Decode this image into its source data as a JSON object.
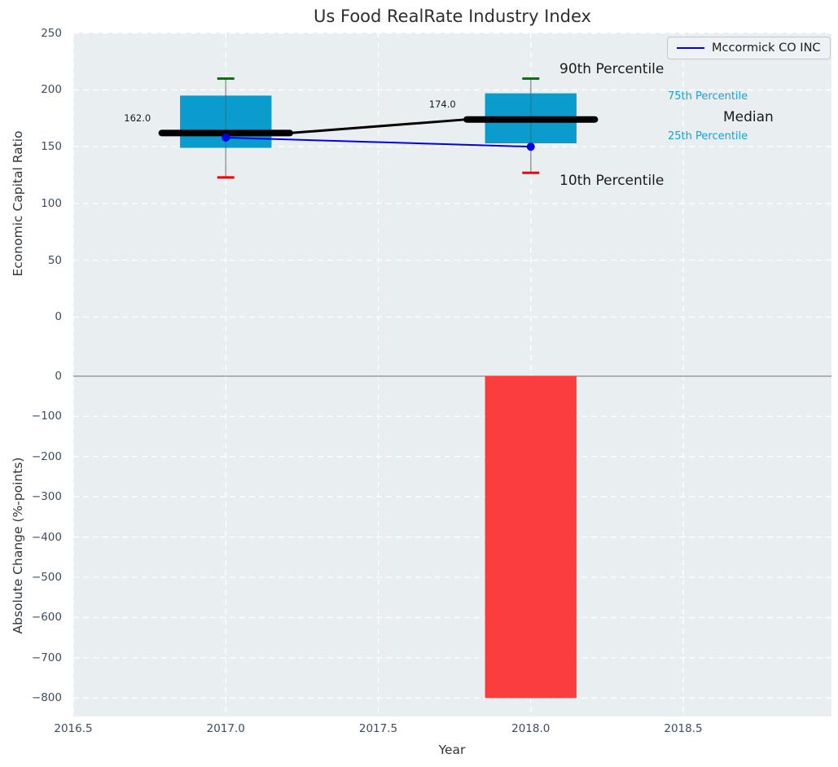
{
  "chart_data": {
    "type": "boxplot+bar",
    "title": "Us Food RealRate Industry Index",
    "xlabel": "Year",
    "x": {
      "xlim": [
        2016.5,
        2018.986
      ],
      "tick_values": [
        2016.5,
        2017.0,
        2017.5,
        2018.0,
        2018.5
      ],
      "tick_labels": [
        "2016.5",
        "2017.0",
        "2017.5",
        "2018.0",
        "2018.5"
      ]
    },
    "top": {
      "ylabel": "Economic Capital Ratio",
      "ylim": [
        -48.5,
        250.5
      ],
      "tick_values": [
        0,
        50,
        100,
        150,
        200,
        250
      ],
      "tick_labels": [
        "0",
        "50",
        "100",
        "150",
        "200",
        "250"
      ],
      "series_label": "Mccormick CO INC",
      "percentile_labels": {
        "p90": "90th Percentile",
        "p75": "75th Percentile",
        "median": "Median",
        "p25": "25th Percentile",
        "p10": "10th Percentile"
      },
      "boxes": [
        {
          "year": 2017,
          "p10": 123,
          "p25": 149,
          "median": 162,
          "p75": 195,
          "p90": 210,
          "median_label": "162.0"
        },
        {
          "year": 2018,
          "p10": 127,
          "p25": 153,
          "median": 174,
          "p75": 197,
          "p90": 210,
          "median_label": "174.0"
        }
      ],
      "company_series": {
        "name": "Mccormick CO INC",
        "points": [
          {
            "x": 2017,
            "y": 158
          },
          {
            "x": 2018,
            "y": 150
          }
        ]
      }
    },
    "bottom": {
      "ylabel": "Absolute Change (%-points)",
      "ylim": [
        -846,
        10
      ],
      "tick_values": [
        0,
        -100,
        -200,
        -300,
        -400,
        -500,
        -600,
        -700,
        -800
      ],
      "tick_labels": [
        "0",
        "−100",
        "−200",
        "−300",
        "−400",
        "−500",
        "−600",
        "−700",
        "−800"
      ],
      "bars": [
        {
          "year": 2018,
          "value": -800
        }
      ]
    },
    "colors": {
      "plot_bg": "#e9eef1",
      "grid": "#ffffff",
      "box_fill": "#0a9ccd",
      "median": "#000000",
      "company_line": "#0000f0",
      "bar_fill": "#fa3d3d",
      "cap_high": "#007a00",
      "cap_low": "#ff0000",
      "whisker": "#4c585e",
      "zero_line": "#b0b0b0",
      "tick_text": "#3d4c63",
      "percentile_text": "#1aa0d5"
    }
  }
}
